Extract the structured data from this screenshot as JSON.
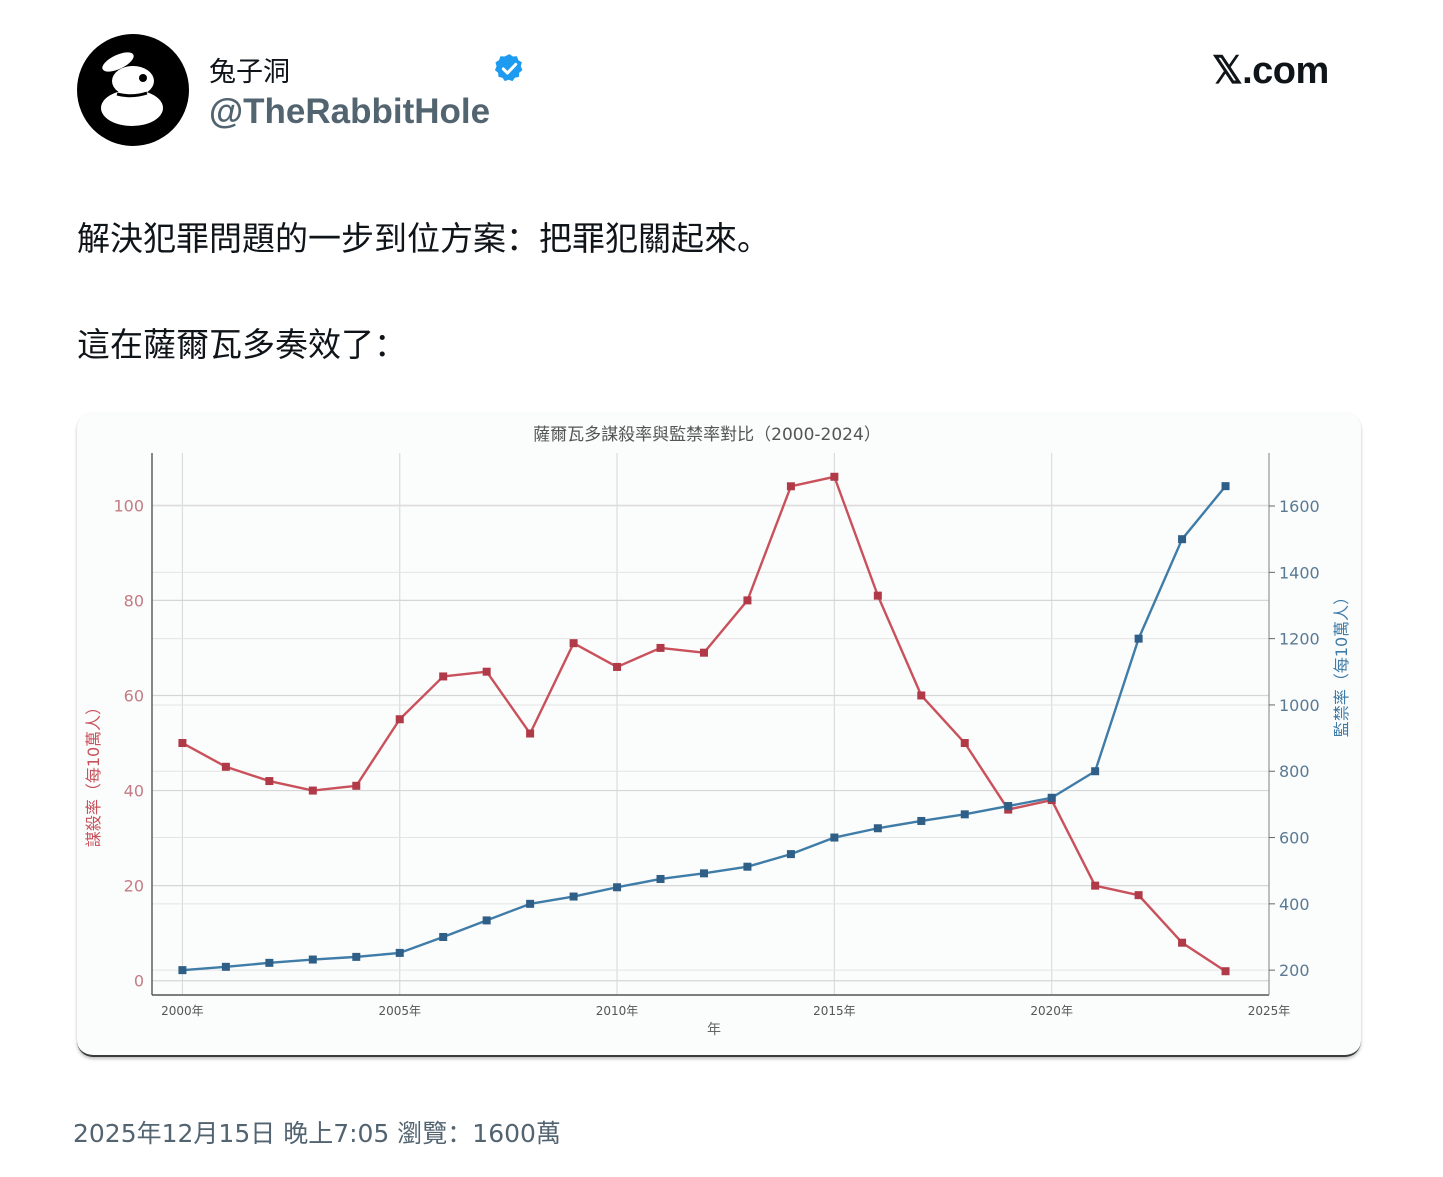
{
  "author": {
    "display_name": "兔子洞",
    "handle": "@TheRabbitHole",
    "verified": true,
    "avatar_icon": "rabbit-icon"
  },
  "brand": {
    "label": "𝕏.com"
  },
  "tweet": {
    "line1": "解決犯罪問題的一步到位方案：把罪犯關起來。",
    "line2": "這在薩爾瓦多奏效了："
  },
  "meta": {
    "timestamp": "2025年12月15日 晚上7:05",
    "views_label": "瀏覽：1600萬"
  },
  "colors": {
    "homicide": "#c9515b",
    "incarceration": "#3f7ca8",
    "verified": "#1d9bf0",
    "muted_text": "#536471"
  },
  "chart_data": {
    "type": "line",
    "title": "薩爾瓦多謀殺率與監禁率對比（2000-2024）",
    "xlabel": "年",
    "ylabel_left": "謀殺率（每10萬人）",
    "ylabel_right": "監禁率（每10萬人）",
    "xlim": [
      1999.3,
      2025
    ],
    "ylim_left": [
      -3,
      111
    ],
    "ylim_right": [
      125,
      1760
    ],
    "x_ticks": [
      {
        "value": 2000,
        "label": "2000年"
      },
      {
        "value": 2005,
        "label": "2005年"
      },
      {
        "value": 2010,
        "label": "2010年"
      },
      {
        "value": 2015,
        "label": "2015年"
      },
      {
        "value": 2020,
        "label": "2020年"
      },
      {
        "value": 2025,
        "label": "2025年"
      }
    ],
    "y_left_ticks": [
      0,
      20,
      40,
      60,
      80,
      100
    ],
    "y_right_ticks": [
      200,
      400,
      600,
      800,
      1000,
      1200,
      1400,
      1600
    ],
    "grid": true,
    "x": [
      2000,
      2001,
      2002,
      2003,
      2004,
      2005,
      2006,
      2007,
      2008,
      2009,
      2010,
      2011,
      2012,
      2013,
      2014,
      2015,
      2016,
      2017,
      2018,
      2019,
      2020,
      2021,
      2022,
      2023,
      2024
    ],
    "series": [
      {
        "axis": "left",
        "values": [
          50,
          45,
          42,
          40,
          41,
          55,
          64,
          65,
          52,
          71,
          66,
          70,
          69,
          80,
          104,
          106,
          81,
          60,
          50,
          36,
          38,
          20,
          18,
          8,
          2
        ]
      },
      {
        "axis": "right",
        "values": [
          200,
          210,
          222,
          232,
          240,
          252,
          300,
          350,
          400,
          422,
          450,
          475,
          492,
          512,
          550,
          600,
          628,
          650,
          670,
          695,
          720,
          800,
          1200,
          1500,
          1660
        ]
      }
    ]
  }
}
